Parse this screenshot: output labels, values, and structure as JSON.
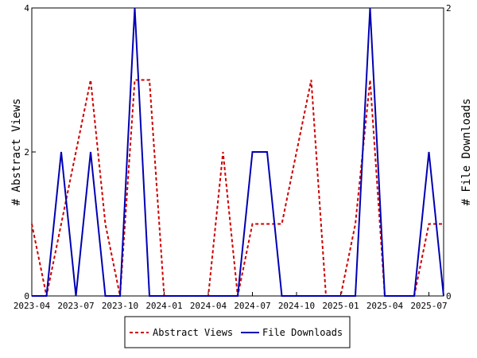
{
  "chart_data": {
    "type": "line",
    "title": "",
    "x": [
      "2023-04",
      "2023-05",
      "2023-06",
      "2023-07",
      "2023-08",
      "2023-09",
      "2023-10",
      "2023-11",
      "2023-12",
      "2024-01",
      "2024-02",
      "2024-03",
      "2024-04",
      "2024-05",
      "2024-06",
      "2024-07",
      "2024-08",
      "2024-09",
      "2024-10",
      "2024-11",
      "2024-12",
      "2025-01",
      "2025-02",
      "2025-03",
      "2025-04",
      "2025-05",
      "2025-06",
      "2025-07",
      "2025-08"
    ],
    "x_ticks": [
      "2023-04",
      "2023-07",
      "2023-10",
      "2024-01",
      "2024-04",
      "2024-07",
      "2024-10",
      "2025-01",
      "2025-04",
      "2025-07"
    ],
    "y_left": {
      "label": "# Abstract Views",
      "ticks": [
        "0",
        "2",
        "4"
      ],
      "range": [
        0,
        4
      ]
    },
    "y_right": {
      "label": "# File Downloads",
      "ticks": [
        "0",
        "2"
      ],
      "range": [
        0,
        2
      ]
    },
    "legend_position": "bottom-center",
    "grid": false,
    "series": [
      {
        "name": "Abstract Views",
        "axis": "left",
        "color": "#cc0000",
        "dash": "dashed",
        "values": [
          1,
          0,
          1,
          2,
          3,
          1,
          0,
          3,
          3,
          0,
          0,
          0,
          0,
          2,
          0,
          1,
          1,
          1,
          2,
          3,
          0,
          0,
          1,
          3,
          0,
          0,
          0,
          1,
          1
        ]
      },
      {
        "name": "File Downloads",
        "axis": "right",
        "color": "#0000b3",
        "dash": "solid",
        "values": [
          0,
          0,
          1,
          0,
          1,
          0,
          0,
          2,
          0,
          0,
          0,
          0,
          0,
          0,
          0,
          1,
          1,
          0,
          0,
          0,
          0,
          0,
          0,
          2,
          0,
          0,
          0,
          1,
          0
        ]
      }
    ]
  }
}
